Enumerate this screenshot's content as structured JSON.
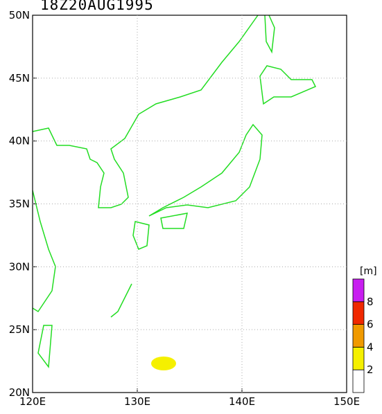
{
  "title": "18Z20AUG1995",
  "map": {
    "xlim": [
      120,
      150
    ],
    "ylim": [
      20,
      50
    ],
    "xticks": [
      {
        "value": 120,
        "label": "120E"
      },
      {
        "value": 130,
        "label": "130E"
      },
      {
        "value": 140,
        "label": "140E"
      },
      {
        "value": 150,
        "label": "150E"
      }
    ],
    "yticks": [
      {
        "value": 20,
        "label": "20N"
      },
      {
        "value": 25,
        "label": "25N"
      },
      {
        "value": 30,
        "label": "30N"
      },
      {
        "value": 35,
        "label": "35N"
      },
      {
        "value": 40,
        "label": "40N"
      },
      {
        "value": 45,
        "label": "45N"
      },
      {
        "value": 50,
        "label": "50N"
      }
    ],
    "grid": true
  },
  "colorbar": {
    "unit": "[m]",
    "levels": [
      2,
      4,
      6,
      8
    ],
    "colors": [
      "#ffffff",
      "#f5f000",
      "#f09a00",
      "#f02800",
      "#c81ef0"
    ]
  }
}
